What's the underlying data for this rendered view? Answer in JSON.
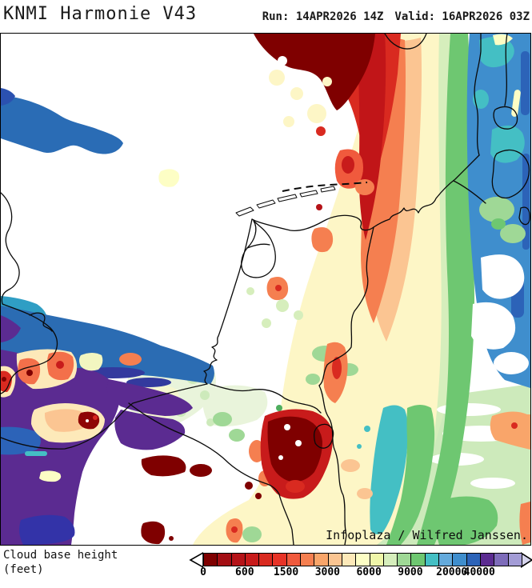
{
  "header": {
    "title": "KNMI Harmonie V43",
    "run_label": "Run: 14APR2026 14Z",
    "valid_label": "Valid: 16APR2026 03Z"
  },
  "map": {
    "attribution": "Infoplaza / Wilfred Janssen.",
    "variable": "Cloud base height",
    "unit": "feet"
  },
  "legend": {
    "label_line1": "Cloud base height",
    "label_line2": "(feet)",
    "tick_labels": [
      "0",
      "600",
      "1500",
      "3000",
      "6000",
      "9000",
      "20000",
      "40000"
    ],
    "tick_cell_boundaries": [
      0,
      3,
      6,
      9,
      12,
      15,
      18,
      20
    ],
    "cell_count": 23,
    "cell_colors": [
      "#7f0000",
      "#a30e13",
      "#b51318",
      "#c81b1b",
      "#d92a20",
      "#e73327",
      "#f05a3d",
      "#f57f50",
      "#f9a56a",
      "#fbc592",
      "#fde9b9",
      "#fdfec5",
      "#eff6a9",
      "#d6eebc",
      "#9fd896",
      "#6ec771",
      "#44bfc4",
      "#64aadc",
      "#3f8ecd",
      "#2c63b8",
      "#5b2b91",
      "#7e6cba",
      "#a39cd6"
    ],
    "left_arrow_fill": "#ffffff",
    "right_arrow_fill": "#d6d4ec",
    "outline_color": "#000000"
  }
}
